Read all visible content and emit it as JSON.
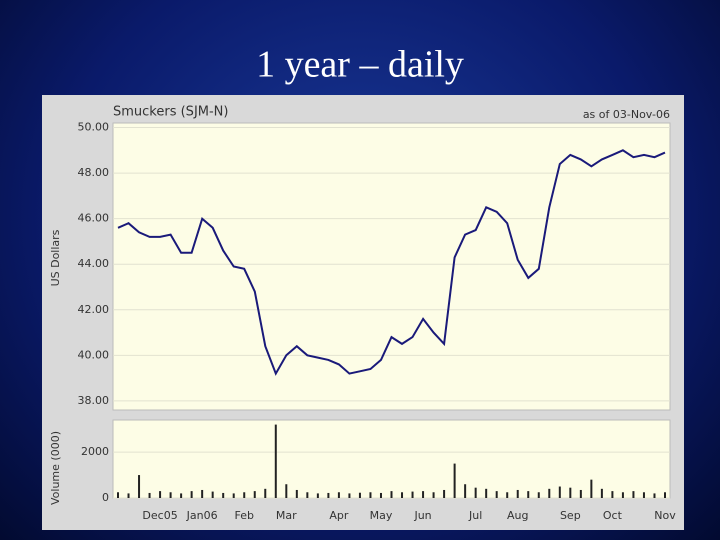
{
  "title": "1 year – daily",
  "chart_data": [
    {
      "type": "line",
      "title": "Smuckers (SJM-N)",
      "subtitle": "as of 03-Nov-06",
      "ylabel": "US Dollars",
      "color": "#1a1a7a",
      "grid": true,
      "values": [
        45.6,
        45.8,
        45.4,
        45.2,
        45.2,
        45.3,
        44.5,
        44.5,
        46.0,
        45.6,
        44.6,
        43.9,
        43.8,
        42.8,
        40.4,
        39.2,
        40.0,
        40.4,
        40.0,
        39.9,
        39.8,
        39.6,
        39.2,
        39.3,
        39.4,
        39.8,
        40.8,
        40.5,
        40.8,
        41.6,
        41.0,
        40.5,
        44.3,
        45.3,
        45.5,
        46.5,
        46.3,
        45.8,
        44.2,
        43.4,
        43.8,
        46.5,
        48.4,
        48.8,
        48.6,
        48.3,
        48.6,
        48.8,
        49.0,
        48.7,
        48.8,
        48.7,
        48.9
      ],
      "ylim": [
        37.6,
        50.2
      ],
      "yticks": [
        {
          "value": 38,
          "label": "38.00"
        },
        {
          "value": 40,
          "label": "40.00"
        },
        {
          "value": 42,
          "label": "42.00"
        },
        {
          "value": 44,
          "label": "44.00"
        },
        {
          "value": 46,
          "label": "46.00"
        },
        {
          "value": 48,
          "label": "48.00"
        },
        {
          "value": 50,
          "label": "50.00"
        }
      ]
    },
    {
      "type": "bar",
      "ylabel": "Volume (000)",
      "color": "#222222",
      "grid": true,
      "categories": [
        null,
        null,
        null,
        null,
        "Dec05",
        null,
        null,
        null,
        "Jan06",
        null,
        null,
        null,
        "Feb",
        null,
        null,
        null,
        "Mar",
        null,
        null,
        null,
        null,
        "Apr",
        null,
        null,
        null,
        "May",
        null,
        null,
        null,
        "Jun",
        null,
        null,
        null,
        null,
        "Jul",
        null,
        null,
        null,
        "Aug",
        null,
        null,
        null,
        null,
        "Sep",
        null,
        null,
        null,
        "Oct",
        null,
        null,
        null,
        null,
        "Nov"
      ],
      "values": [
        250,
        200,
        1000,
        220,
        300,
        250,
        200,
        300,
        350,
        280,
        220,
        200,
        250,
        300,
        400,
        3200,
        600,
        350,
        250,
        200,
        220,
        250,
        200,
        230,
        250,
        220,
        300,
        250,
        280,
        300,
        250,
        350,
        1500,
        600,
        450,
        400,
        300,
        250,
        350,
        300,
        250,
        400,
        500,
        450,
        350,
        800,
        400,
        300,
        250,
        300,
        250,
        200,
        250
      ],
      "ylim": [
        0,
        3400
      ],
      "yticks": [
        0,
        2000
      ]
    }
  ]
}
